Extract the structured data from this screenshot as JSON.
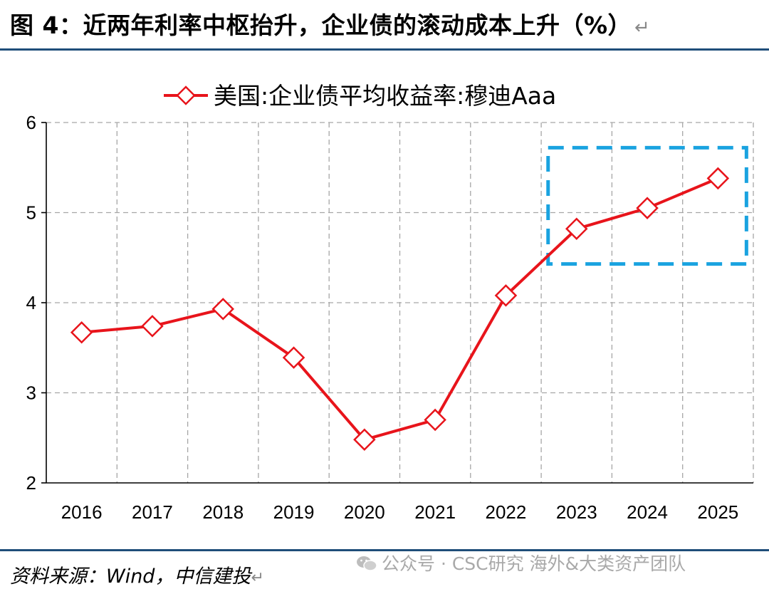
{
  "header": {
    "title": "图 4：近两年利率中枢抬升，企业债的滚动成本上升（%）",
    "return_mark": "↵"
  },
  "footer": {
    "source": "资料来源：Wind，中信建投",
    "return_mark": "↵",
    "watermark": "公众号 · CSC研究 海外&大类资产团队",
    "watermark_icon": "wechat-icon"
  },
  "colors": {
    "title_rule": "#1f4e79",
    "series": "#e8141b",
    "highlight_box": "#1aa3e0",
    "grid": "#a6a6a6"
  },
  "chart_data": {
    "type": "line",
    "x": [
      "2016",
      "2017",
      "2018",
      "2019",
      "2020",
      "2021",
      "2022",
      "2023",
      "2024",
      "2025"
    ],
    "series": [
      {
        "name": "美国:企业债平均收益率:穆迪Aaa",
        "values": [
          3.67,
          3.74,
          3.93,
          3.39,
          2.48,
          2.7,
          4.08,
          4.82,
          5.05,
          5.38
        ],
        "marker": "diamond-open"
      }
    ],
    "yticks": [
      2,
      3,
      4,
      5,
      6
    ],
    "ylim": [
      2,
      6
    ],
    "grid": true,
    "legend_position": "top-center",
    "highlight": {
      "from": "2023",
      "to": "2025",
      "style": "dashed-box"
    }
  }
}
